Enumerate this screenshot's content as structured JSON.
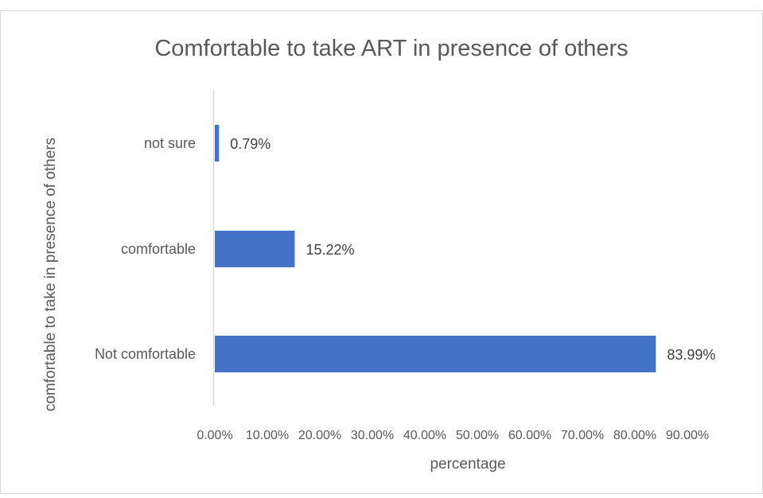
{
  "chart_data": {
    "type": "bar",
    "orientation": "horizontal",
    "title": "Comfortable to take ART in presence of others",
    "xlabel": "percentage",
    "ylabel": "comfortable to take in presence of others",
    "categories": [
      "not sure",
      "comfortable",
      "Not comfortable"
    ],
    "values": [
      0.79,
      15.22,
      83.99
    ],
    "value_labels": [
      "0.79%",
      "15.22%",
      "83.99%"
    ],
    "xlim": [
      0,
      90
    ],
    "x_ticks": [
      0,
      10,
      20,
      30,
      40,
      50,
      60,
      70,
      80,
      90
    ],
    "x_tick_labels": [
      "0.00%",
      "10.00%",
      "20.00%",
      "30.00%",
      "40.00%",
      "50.00%",
      "60.00%",
      "70.00%",
      "80.00%",
      "90.00%"
    ],
    "grid": false,
    "legend": "none",
    "bar_color": "#4472C4",
    "text_color": "#595959",
    "axis_color": "#D9D9D9"
  }
}
